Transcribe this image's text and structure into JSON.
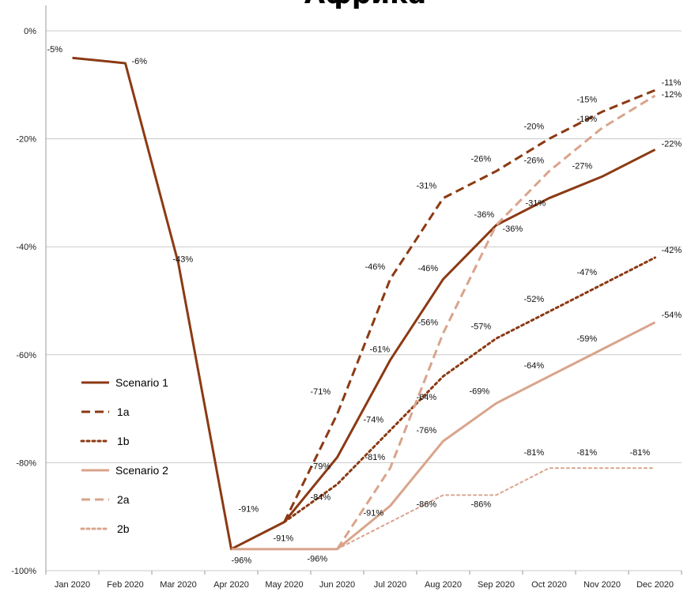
{
  "chart_data": {
    "type": "line",
    "title": "Африка",
    "xlabel": "",
    "ylabel": "",
    "ylim": [
      -100,
      0
    ],
    "yticks": [
      "0%",
      "-20%",
      "-40%",
      "-60%",
      "-80%",
      "-100%"
    ],
    "grid": "horizontal",
    "legend_position": "bottom-left",
    "categories": [
      "Jan 2020",
      "Feb 2020",
      "Mar 2020",
      "Apr 2020",
      "May 2020",
      "Jun 2020",
      "Jul 2020",
      "Aug 2020",
      "Sep 2020",
      "Oct 2020",
      "Nov 2020",
      "Dec 2020"
    ],
    "series": [
      {
        "name": "Scenario 1",
        "color": "#8b3a14",
        "dash": "solid",
        "width": 3,
        "values": [
          -5,
          -6,
          -43,
          -96,
          -91,
          -79,
          -61,
          -46,
          -36,
          -31,
          -27,
          -22
        ],
        "labels": [
          "-5%",
          "-6%",
          "-43%",
          "-96%",
          "-91%",
          "-79%",
          "-61%",
          "-46%",
          "-36%",
          "-31%",
          "-27%",
          "-22%"
        ]
      },
      {
        "name": "1a",
        "color": "#8b3a14",
        "dash": "dashed",
        "width": 3,
        "values": [
          null,
          null,
          null,
          null,
          -91,
          -71,
          -46,
          -31,
          -26,
          -20,
          -15,
          -11
        ],
        "labels": [
          null,
          null,
          null,
          null,
          "-91%",
          "-71%",
          "-46%",
          "-31%",
          "-26%",
          "-20%",
          "-15%",
          "-11%"
        ]
      },
      {
        "name": "1b",
        "color": "#8b3a14",
        "dash": "dotted",
        "width": 3,
        "values": [
          null,
          null,
          null,
          null,
          -91,
          -84,
          -74,
          -64,
          -57,
          -52,
          -47,
          -42
        ],
        "labels": [
          null,
          null,
          null,
          null,
          "-91%",
          "-84%",
          "-74%",
          "-64%",
          "-57%",
          "-52%",
          "-47%",
          "-42%"
        ]
      },
      {
        "name": "Scenario 2",
        "color": "#d9a48c",
        "dash": "solid",
        "width": 3,
        "values": [
          null,
          null,
          null,
          -96,
          -96,
          -96,
          -88,
          -76,
          -69,
          -64,
          -59,
          -54
        ],
        "labels": [
          null,
          null,
          null,
          null,
          null,
          null,
          null,
          "-76%",
          "-69%",
          "-64%",
          "-59%",
          "-54%"
        ]
      },
      {
        "name": "2a",
        "color": "#d9a48c",
        "dash": "dashed",
        "width": 3,
        "values": [
          null,
          null,
          null,
          null,
          null,
          -96,
          -81,
          -56,
          -36,
          -26,
          -18,
          -12
        ],
        "labels": [
          null,
          null,
          null,
          null,
          null,
          "-96%",
          "-81%",
          "-56%",
          "-36%",
          "-26%",
          "-18%",
          "-12%"
        ]
      },
      {
        "name": "2b",
        "color": "#d9a48c",
        "dash": "dotted",
        "width": 2,
        "values": [
          null,
          null,
          null,
          null,
          null,
          -96,
          -91,
          -86,
          -86,
          -81,
          -81,
          -81
        ],
        "labels": [
          null,
          null,
          null,
          null,
          null,
          null,
          "-91%",
          "-86%",
          "-86%",
          "-81%",
          "-81%",
          "-81%"
        ]
      }
    ]
  }
}
